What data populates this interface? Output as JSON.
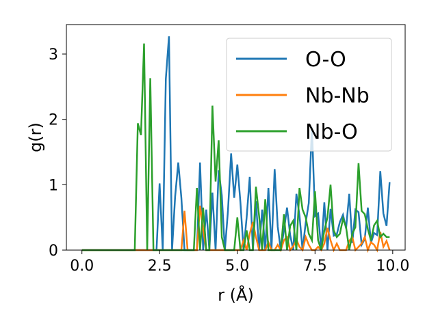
{
  "chart_data": {
    "type": "line",
    "title": "",
    "xlabel": "r (Å)",
    "ylabel": "g(r)",
    "xlim": [
      -0.5,
      10.4
    ],
    "ylim": [
      0,
      3.45
    ],
    "xticks": [
      0.0,
      2.5,
      5.0,
      7.5,
      10.0
    ],
    "xtick_labels": [
      "0.0",
      "2.5",
      "5.0",
      "7.5",
      "10.0"
    ],
    "yticks": [
      0,
      1,
      2,
      3
    ],
    "ytick_labels": [
      "0",
      "1",
      "2",
      "3"
    ],
    "grid": false,
    "legend_position": "top-right",
    "series": [
      {
        "name": "O-O",
        "color": "#1f77b4",
        "x": [
          0.0,
          2.3,
          2.4,
          2.5,
          2.6,
          2.7,
          2.8,
          2.9,
          3.0,
          3.1,
          3.2,
          3.3,
          3.4,
          3.5,
          3.6,
          3.7,
          3.8,
          3.9,
          4.0,
          4.1,
          4.2,
          4.3,
          4.4,
          4.5,
          4.6,
          4.7,
          4.8,
          4.9,
          5.0,
          5.1,
          5.2,
          5.3,
          5.4,
          5.5,
          5.6,
          5.7,
          5.8,
          5.9,
          6.0,
          6.1,
          6.2,
          6.3,
          6.4,
          6.5,
          6.6,
          6.7,
          6.8,
          6.9,
          7.0,
          7.1,
          7.2,
          7.3,
          7.4,
          7.5,
          7.6,
          7.7,
          7.8,
          7.9,
          8.0,
          8.1,
          8.2,
          8.3,
          8.4,
          8.5,
          8.6,
          8.7,
          8.8,
          8.9,
          9.0,
          9.1,
          9.2,
          9.3,
          9.4,
          9.5,
          9.6,
          9.7,
          9.8,
          9.9
        ],
        "y": [
          0,
          0,
          0,
          1.02,
          0,
          2.62,
          3.27,
          0,
          0.82,
          1.34,
          0.8,
          0,
          0,
          0,
          0,
          0,
          1.34,
          0,
          0.62,
          0,
          0.88,
          0,
          1.22,
          0.84,
          0,
          0.6,
          1.48,
          0.8,
          1.31,
          0.73,
          0,
          0.5,
          1.12,
          0,
          0.75,
          0,
          0.62,
          0,
          0.95,
          0,
          1.24,
          0.36,
          0,
          0.3,
          0.65,
          0.23,
          0,
          0.86,
          0.53,
          0,
          0.42,
          0.72,
          1.88,
          0.52,
          0.56,
          0,
          0.73,
          0,
          0.63,
          0.22,
          0.24,
          0.43,
          0.54,
          0.33,
          0.86,
          0.11,
          0.62,
          0.58,
          0.08,
          0.17,
          0.65,
          0.11,
          0.26,
          0.23,
          1.21,
          0.56,
          0.37,
          1.04
        ]
      },
      {
        "name": "Nb-Nb",
        "color": "#ff7f0e",
        "x": [
          0.0,
          3.1,
          3.2,
          3.3,
          3.4,
          3.5,
          3.6,
          3.7,
          3.8,
          3.9,
          4.0,
          4.1,
          4.2,
          4.3,
          4.4,
          4.5,
          4.6,
          4.7,
          4.8,
          4.9,
          5.0,
          5.1,
          5.2,
          5.3,
          5.4,
          5.5,
          5.6,
          5.7,
          5.8,
          5.9,
          6.0,
          6.1,
          6.2,
          6.3,
          6.4,
          6.5,
          6.6,
          6.7,
          6.8,
          6.9,
          7.0,
          7.1,
          7.2,
          7.3,
          7.4,
          7.5,
          7.6,
          7.7,
          7.8,
          7.9,
          8.0,
          8.1,
          8.2,
          8.3,
          8.4,
          8.5,
          8.6,
          8.7,
          8.8,
          8.9,
          9.0,
          9.1,
          9.2,
          9.3,
          9.4,
          9.5,
          9.6,
          9.7,
          9.8,
          9.9
        ],
        "y": [
          0,
          0,
          0,
          0.6,
          0,
          0,
          0,
          0,
          0.68,
          0.32,
          0,
          0,
          0,
          0,
          0,
          0,
          0,
          0,
          0,
          0,
          0,
          0,
          0.15,
          0,
          0.25,
          0.43,
          0.2,
          0,
          0,
          0,
          0.12,
          0,
          0,
          0.08,
          0,
          0.15,
          0.2,
          0,
          0.06,
          0.16,
          0.05,
          0,
          0.2,
          0.08,
          0,
          0,
          0.05,
          0,
          0.1,
          0.34,
          0.15,
          0,
          0.1,
          0,
          0,
          0,
          0.14,
          0.2,
          0,
          0.05,
          0.1,
          0.2,
          0,
          0.12,
          0.08,
          0,
          0.28,
          0.05,
          0.14,
          0
        ]
      },
      {
        "name": "Nb-O",
        "color": "#2ca02c",
        "x": [
          0.0,
          1.7,
          1.8,
          1.9,
          2.0,
          2.1,
          2.2,
          2.3,
          3.0,
          3.1,
          3.2,
          3.3,
          3.4,
          3.5,
          3.6,
          3.7,
          3.8,
          3.9,
          4.0,
          4.1,
          4.2,
          4.3,
          4.4,
          4.5,
          4.6,
          4.7,
          4.8,
          4.9,
          5.0,
          5.1,
          5.2,
          5.3,
          5.4,
          5.5,
          5.6,
          5.7,
          5.8,
          5.9,
          6.0,
          6.1,
          6.2,
          6.3,
          6.4,
          6.5,
          6.6,
          6.7,
          6.8,
          6.9,
          7.0,
          7.1,
          7.2,
          7.3,
          7.4,
          7.5,
          7.6,
          7.7,
          7.8,
          7.9,
          8.0,
          8.1,
          8.2,
          8.3,
          8.4,
          8.5,
          8.6,
          8.7,
          8.8,
          8.9,
          9.0,
          9.1,
          9.2,
          9.3,
          9.4,
          9.5,
          9.6,
          9.7,
          9.8,
          9.9
        ],
        "y": [
          0,
          0,
          1.94,
          1.76,
          3.16,
          0,
          2.63,
          0,
          0,
          0,
          0,
          0,
          0,
          0,
          0,
          0.95,
          0,
          0.65,
          0,
          0,
          2.21,
          1.05,
          1.68,
          0.2,
          0,
          0,
          0,
          0,
          0.5,
          0,
          0,
          0.3,
          0,
          0,
          0.97,
          0.52,
          0,
          0.78,
          0,
          0,
          0,
          0,
          0,
          0.55,
          0,
          0.37,
          0.45,
          0,
          0.95,
          0.62,
          0.5,
          0.25,
          0.15,
          0.9,
          0.15,
          0,
          0.3,
          0.5,
          1.0,
          0.3,
          0.2,
          0.25,
          0.48,
          0.35,
          0,
          0.25,
          0.35,
          1.33,
          0.6,
          0.55,
          0.32,
          0.15,
          0.38,
          0.45,
          0.2,
          0.25,
          0.2,
          0.2
        ]
      }
    ]
  }
}
